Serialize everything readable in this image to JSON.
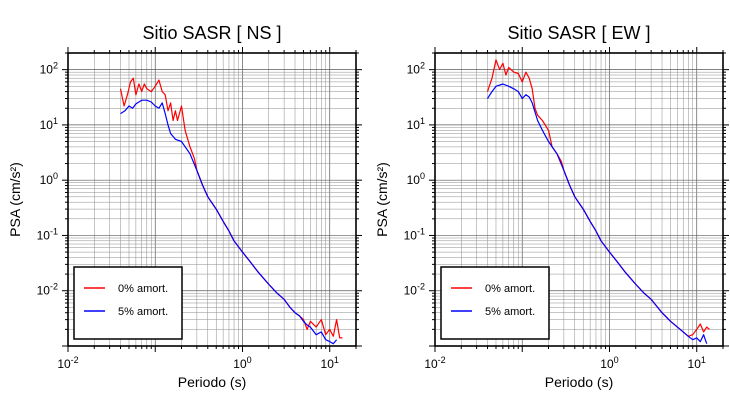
{
  "chart_data": [
    {
      "type": "line",
      "title": "Sitio SASR [ NS ]",
      "xlabel": "Periodo (s)",
      "ylabel": "PSA (cm/s²)",
      "xscale": "log",
      "yscale": "log",
      "xlim": [
        0.01,
        20
      ],
      "ylim": [
        0.001,
        200
      ],
      "grid": true,
      "legend_position": "bottom-left",
      "x_tick_labels": [
        "10^-2",
        "10^0",
        "10^1"
      ],
      "y_tick_labels": [
        "10^-2",
        "10^-1",
        "10^0",
        "10^1",
        "10^2"
      ],
      "series": [
        {
          "name": "0% amort.",
          "color": "#ff0000",
          "x": [
            0.04,
            0.044,
            0.048,
            0.052,
            0.056,
            0.06,
            0.065,
            0.07,
            0.075,
            0.08,
            0.09,
            0.1,
            0.11,
            0.12,
            0.13,
            0.14,
            0.15,
            0.16,
            0.17,
            0.18,
            0.2,
            0.22,
            0.25,
            0.28,
            0.3,
            0.35,
            0.4,
            0.5,
            0.6,
            0.7,
            0.8,
            1.0,
            1.2,
            1.5,
            2.0,
            2.5,
            3.0,
            3.5,
            4.0,
            4.5,
            5.0,
            5.5,
            6.0,
            7.0,
            8.0,
            9.0,
            10.0,
            11.0,
            12.0,
            13.0,
            14.0
          ],
          "y": [
            45,
            22,
            35,
            60,
            70,
            35,
            55,
            40,
            55,
            45,
            40,
            50,
            65,
            40,
            35,
            18,
            25,
            12,
            18,
            12,
            22,
            8,
            4,
            2.5,
            1.5,
            0.8,
            0.5,
            0.3,
            0.18,
            0.12,
            0.08,
            0.05,
            0.035,
            0.022,
            0.013,
            0.009,
            0.007,
            0.005,
            0.004,
            0.0035,
            0.003,
            0.002,
            0.0028,
            0.0022,
            0.003,
            0.0016,
            0.002,
            0.0015,
            0.003,
            0.0014,
            0.0014
          ]
        },
        {
          "name": "5% amort.",
          "color": "#0000ff",
          "x": [
            0.04,
            0.045,
            0.05,
            0.055,
            0.06,
            0.07,
            0.08,
            0.09,
            0.1,
            0.11,
            0.12,
            0.13,
            0.14,
            0.15,
            0.17,
            0.2,
            0.25,
            0.3,
            0.35,
            0.4,
            0.5,
            0.6,
            0.7,
            0.8,
            1.0,
            1.2,
            1.5,
            2.0,
            2.5,
            3.0,
            3.5,
            4.0,
            4.5,
            5.0,
            5.5,
            6.0,
            7.0,
            8.0,
            9.0,
            10.0,
            11.0,
            12.0
          ],
          "y": [
            16,
            18,
            22,
            20,
            24,
            28,
            28,
            26,
            22,
            20,
            25,
            16,
            10,
            7,
            5.5,
            5,
            3,
            1.5,
            0.8,
            0.5,
            0.3,
            0.18,
            0.12,
            0.08,
            0.05,
            0.035,
            0.022,
            0.013,
            0.009,
            0.007,
            0.005,
            0.004,
            0.0035,
            0.0028,
            0.0024,
            0.0022,
            0.0016,
            0.0018,
            0.0013,
            0.0012,
            0.0011,
            0.0013
          ]
        }
      ]
    },
    {
      "type": "line",
      "title": "Sitio SASR [ EW ]",
      "xlabel": "Periodo (s)",
      "ylabel": "PSA (cm/s²)",
      "xscale": "log",
      "yscale": "log",
      "xlim": [
        0.01,
        20
      ],
      "ylim": [
        0.001,
        200
      ],
      "grid": true,
      "legend_position": "bottom-left",
      "x_tick_labels": [
        "10^-2",
        "10^0",
        "10^1"
      ],
      "y_tick_labels": [
        "10^-2",
        "10^-1",
        "10^0",
        "10^1",
        "10^2"
      ],
      "series": [
        {
          "name": "0% amort.",
          "color": "#ff0000",
          "x": [
            0.04,
            0.045,
            0.05,
            0.055,
            0.06,
            0.065,
            0.07,
            0.08,
            0.09,
            0.1,
            0.11,
            0.12,
            0.13,
            0.14,
            0.15,
            0.17,
            0.2,
            0.22,
            0.25,
            0.28,
            0.3,
            0.35,
            0.4,
            0.5,
            0.6,
            0.7,
            0.8,
            1.0,
            1.2,
            1.5,
            2.0,
            2.5,
            3.0,
            4.0,
            5.0,
            6.0,
            7.0,
            8.0,
            9.0,
            10.0,
            11.0,
            12.0,
            13.0,
            14.0
          ],
          "y": [
            40,
            70,
            150,
            100,
            130,
            80,
            110,
            90,
            85,
            60,
            90,
            70,
            45,
            20,
            15,
            12,
            8,
            4,
            3,
            2.2,
            1.5,
            0.8,
            0.5,
            0.3,
            0.18,
            0.12,
            0.08,
            0.05,
            0.035,
            0.022,
            0.013,
            0.009,
            0.007,
            0.004,
            0.0028,
            0.0022,
            0.0018,
            0.0015,
            0.0016,
            0.002,
            0.0025,
            0.0018,
            0.0022,
            0.002
          ]
        },
        {
          "name": "5% amort.",
          "color": "#0000ff",
          "x": [
            0.04,
            0.045,
            0.05,
            0.06,
            0.07,
            0.08,
            0.09,
            0.1,
            0.11,
            0.12,
            0.13,
            0.15,
            0.17,
            0.2,
            0.25,
            0.3,
            0.35,
            0.4,
            0.5,
            0.6,
            0.7,
            0.8,
            1.0,
            1.2,
            1.5,
            2.0,
            2.5,
            3.0,
            4.0,
            5.0,
            6.0,
            7.0,
            8.0,
            9.0,
            10.0,
            11.0,
            12.0,
            13.0
          ],
          "y": [
            30,
            40,
            50,
            55,
            50,
            45,
            40,
            30,
            35,
            32,
            25,
            12,
            8,
            5,
            3,
            1.5,
            0.8,
            0.5,
            0.3,
            0.18,
            0.12,
            0.08,
            0.05,
            0.035,
            0.022,
            0.013,
            0.009,
            0.007,
            0.004,
            0.0028,
            0.0022,
            0.0018,
            0.0015,
            0.0013,
            0.0014,
            0.0012,
            0.0016,
            0.0011
          ]
        }
      ]
    }
  ]
}
